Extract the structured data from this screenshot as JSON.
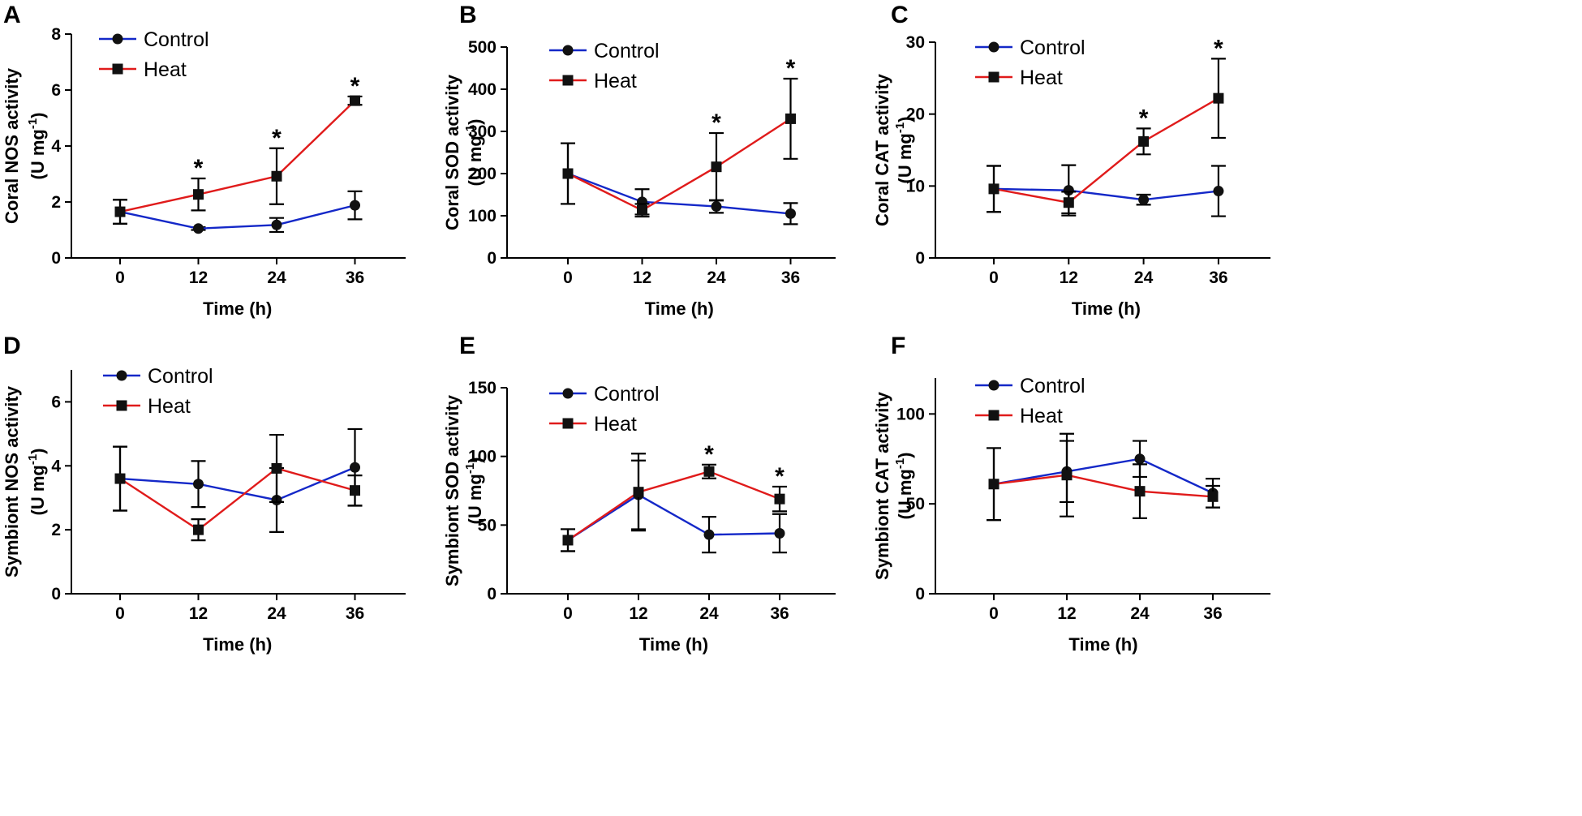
{
  "colors": {
    "control": "#1428c8",
    "heat": "#e01b1b",
    "axis": "#000000",
    "errorbar": "#000000"
  },
  "chart_data": [
    {
      "type": "line",
      "panel": "A",
      "xlabel": "Time (h)",
      "ylabel": "Coral NOS activity",
      "yunit": "(U mg-1)",
      "x": [
        0,
        12,
        24,
        36
      ],
      "xticks": [
        "0",
        "12",
        "24",
        "36"
      ],
      "ylim": [
        0,
        8
      ],
      "yticks": [
        0,
        2,
        4,
        6,
        8
      ],
      "series": [
        {
          "name": "Control",
          "marker": "circle",
          "values": [
            1.65,
            1.05,
            1.18,
            1.88
          ],
          "errors": [
            0.43,
            0.05,
            0.25,
            0.5
          ]
        },
        {
          "name": "Heat",
          "marker": "square",
          "values": [
            1.65,
            2.27,
            2.92,
            5.62
          ],
          "errors": [
            0.43,
            0.57,
            1.0,
            0.15
          ]
        }
      ],
      "significance": [
        {
          "x": 12,
          "label": "*"
        },
        {
          "x": 24,
          "label": "*"
        },
        {
          "x": 36,
          "label": "*"
        }
      ]
    },
    {
      "type": "line",
      "panel": "B",
      "xlabel": "Time (h)",
      "ylabel": "Coral SOD activity",
      "yunit": "(U mg-1)",
      "x": [
        0,
        12,
        24,
        36
      ],
      "xticks": [
        "0",
        "12",
        "24",
        "36"
      ],
      "ylim": [
        0,
        500
      ],
      "yticks": [
        0,
        100,
        200,
        300,
        400,
        500
      ],
      "series": [
        {
          "name": "Control",
          "marker": "circle",
          "values": [
            200,
            133,
            122,
            105
          ],
          "errors": [
            72,
            30,
            15,
            25
          ]
        },
        {
          "name": "Heat",
          "marker": "square",
          "values": [
            200,
            113,
            216,
            330
          ],
          "errors": [
            72,
            15,
            80,
            95
          ]
        }
      ],
      "significance": [
        {
          "x": 24,
          "label": "*"
        },
        {
          "x": 36,
          "label": "*"
        }
      ]
    },
    {
      "type": "line",
      "panel": "C",
      "xlabel": "Time (h)",
      "ylabel": "Coral CAT activity",
      "yunit": "(U mg-1)",
      "x": [
        0,
        12,
        24,
        36
      ],
      "xticks": [
        "0",
        "12",
        "24",
        "36"
      ],
      "ylim": [
        0,
        30
      ],
      "yticks": [
        0,
        10,
        20,
        30
      ],
      "series": [
        {
          "name": "Control",
          "marker": "circle",
          "values": [
            9.6,
            9.4,
            8.1,
            9.3
          ],
          "errors": [
            3.2,
            3.5,
            0.7,
            3.5
          ]
        },
        {
          "name": "Heat",
          "marker": "square",
          "values": [
            9.6,
            7.7,
            16.2,
            22.2
          ],
          "errors": [
            3.2,
            1.5,
            1.8,
            5.5
          ]
        }
      ],
      "significance": [
        {
          "x": 24,
          "label": "*"
        },
        {
          "x": 36,
          "label": "*"
        }
      ]
    },
    {
      "type": "line",
      "panel": "D",
      "xlabel": "Time (h)",
      "ylabel": "Symbiont NOS activity",
      "yunit": "(U mg-1)",
      "x": [
        0,
        12,
        24,
        36
      ],
      "xticks": [
        "0",
        "12",
        "24",
        "36"
      ],
      "ylim": [
        0,
        7
      ],
      "yticks": [
        0,
        2,
        4,
        6
      ],
      "series": [
        {
          "name": "Control",
          "marker": "circle",
          "values": [
            3.6,
            3.43,
            2.93,
            3.95
          ],
          "errors": [
            1.0,
            0.72,
            1.0,
            1.2
          ]
        },
        {
          "name": "Heat",
          "marker": "square",
          "values": [
            3.6,
            2.0,
            3.92,
            3.23
          ],
          "errors": [
            1.0,
            0.33,
            1.05,
            0.47
          ]
        }
      ],
      "significance": []
    },
    {
      "type": "line",
      "panel": "E",
      "xlabel": "Time (h)",
      "ylabel": "Symbiont SOD activity",
      "yunit": "(U mg-1)",
      "x": [
        0,
        12,
        24,
        36
      ],
      "xticks": [
        "0",
        "12",
        "24",
        "36"
      ],
      "ylim": [
        0,
        150
      ],
      "yticks": [
        0,
        50,
        100,
        150
      ],
      "series": [
        {
          "name": "Control",
          "marker": "circle",
          "values": [
            39,
            72,
            43,
            44
          ],
          "errors": [
            8,
            25,
            13,
            14
          ]
        },
        {
          "name": "Heat",
          "marker": "square",
          "values": [
            39,
            74,
            89,
            69
          ],
          "errors": [
            8,
            28,
            5,
            9
          ]
        }
      ],
      "significance": [
        {
          "x": 24,
          "label": "*"
        },
        {
          "x": 36,
          "label": "*"
        }
      ]
    },
    {
      "type": "line",
      "panel": "F",
      "xlabel": "Time (h)",
      "ylabel": "Symbiont CAT activity",
      "yunit": "(U mg-1)",
      "x": [
        0,
        12,
        24,
        36
      ],
      "xticks": [
        "0",
        "12",
        "24",
        "36"
      ],
      "ylim": [
        0,
        120
      ],
      "yticks": [
        0,
        50,
        100
      ],
      "series": [
        {
          "name": "Control",
          "marker": "circle",
          "values": [
            61,
            68,
            75,
            56
          ],
          "errors": [
            20,
            17,
            10,
            8
          ]
        },
        {
          "name": "Heat",
          "marker": "square",
          "values": [
            61,
            66,
            57,
            54
          ],
          "errors": [
            20,
            23,
            15,
            6
          ]
        }
      ],
      "significance": []
    }
  ]
}
